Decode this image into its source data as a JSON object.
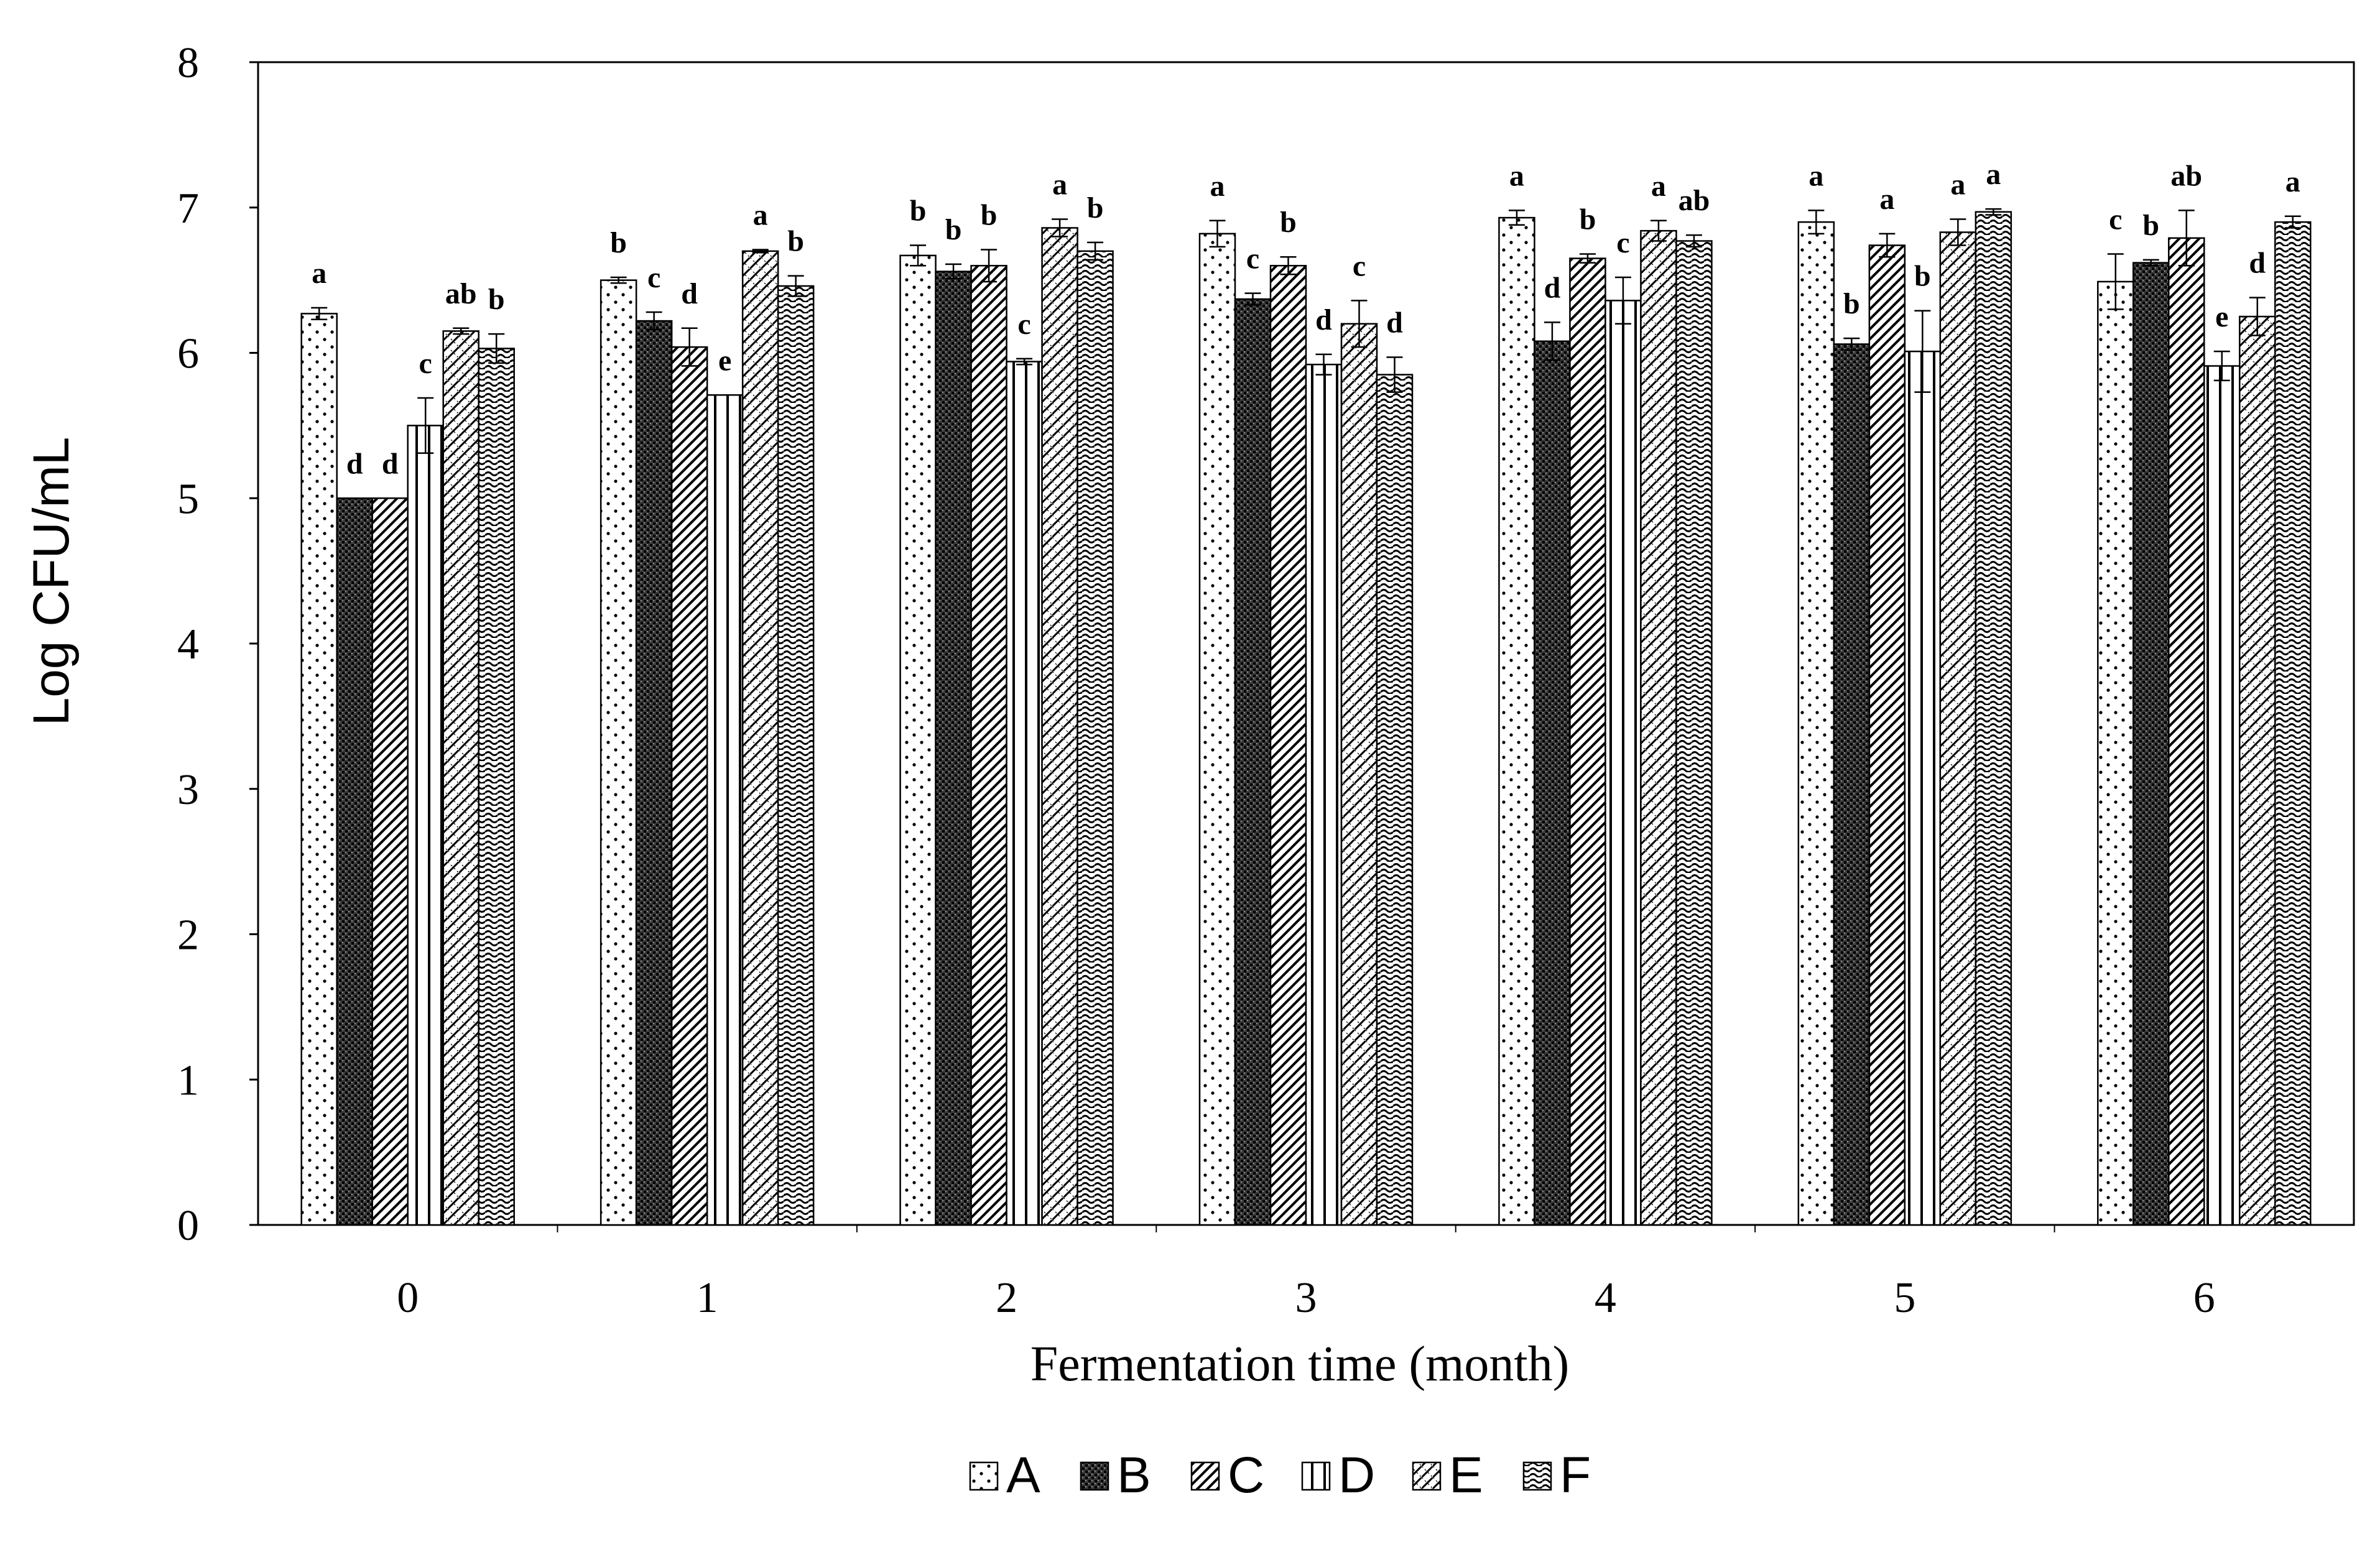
{
  "chart_data": {
    "type": "bar",
    "title": "",
    "xlabel": "Fermentation time (month)",
    "ylabel": "Log CFU/mL",
    "ylim": [
      0,
      8
    ],
    "yticks": [
      "0",
      "1",
      "2",
      "3",
      "4",
      "5",
      "6",
      "7",
      "8"
    ],
    "categories": [
      "0",
      "1",
      "2",
      "3",
      "4",
      "5",
      "6"
    ],
    "grid": false,
    "legend_position": "bottom-center",
    "series": [
      {
        "name": "A",
        "pattern": "dots",
        "values": [
          6.27,
          6.5,
          6.67,
          6.82,
          6.93,
          6.9,
          6.49
        ],
        "errors": [
          0.04,
          0.02,
          0.07,
          0.09,
          0.05,
          0.08,
          0.19
        ],
        "letters": [
          "a",
          "b",
          "b",
          "a",
          "a",
          "a",
          "c"
        ]
      },
      {
        "name": "B",
        "pattern": "dense-dark",
        "values": [
          5.0,
          6.22,
          6.56,
          6.37,
          6.08,
          6.06,
          6.62
        ],
        "errors": [
          0.0,
          0.06,
          0.05,
          0.04,
          0.13,
          0.04,
          0.02
        ],
        "letters": [
          "d",
          "c",
          "b",
          "c",
          "d",
          "b",
          "b"
        ]
      },
      {
        "name": "C",
        "pattern": "diagonal",
        "values": [
          5.0,
          6.04,
          6.6,
          6.6,
          6.65,
          6.74,
          6.79
        ],
        "errors": [
          0.0,
          0.13,
          0.11,
          0.06,
          0.03,
          0.08,
          0.19
        ],
        "letters": [
          "d",
          "d",
          "b",
          "b",
          "b",
          "a",
          "ab"
        ]
      },
      {
        "name": "D",
        "pattern": "vertical",
        "values": [
          5.5,
          5.71,
          5.94,
          5.92,
          6.36,
          6.01,
          5.91
        ],
        "errors": [
          0.19,
          0.0,
          0.02,
          0.07,
          0.16,
          0.28,
          0.1
        ],
        "letters": [
          "c",
          "e",
          "c",
          "d",
          "c",
          "b",
          "e"
        ]
      },
      {
        "name": "E",
        "pattern": "cross-diagonal",
        "values": [
          6.15,
          6.7,
          6.86,
          6.2,
          6.84,
          6.83,
          6.25
        ],
        "errors": [
          0.02,
          0.01,
          0.06,
          0.16,
          0.07,
          0.09,
          0.13
        ],
        "letters": [
          "ab",
          "a",
          "a",
          "c",
          "a",
          "a",
          "d"
        ]
      },
      {
        "name": "F",
        "pattern": "wave",
        "values": [
          6.03,
          6.46,
          6.7,
          5.85,
          6.77,
          6.97,
          6.9
        ],
        "errors": [
          0.1,
          0.07,
          0.06,
          0.12,
          0.04,
          0.02,
          0.04
        ],
        "letters": [
          "b",
          "b",
          "b",
          "d",
          "ab",
          "a",
          "a"
        ]
      }
    ]
  }
}
